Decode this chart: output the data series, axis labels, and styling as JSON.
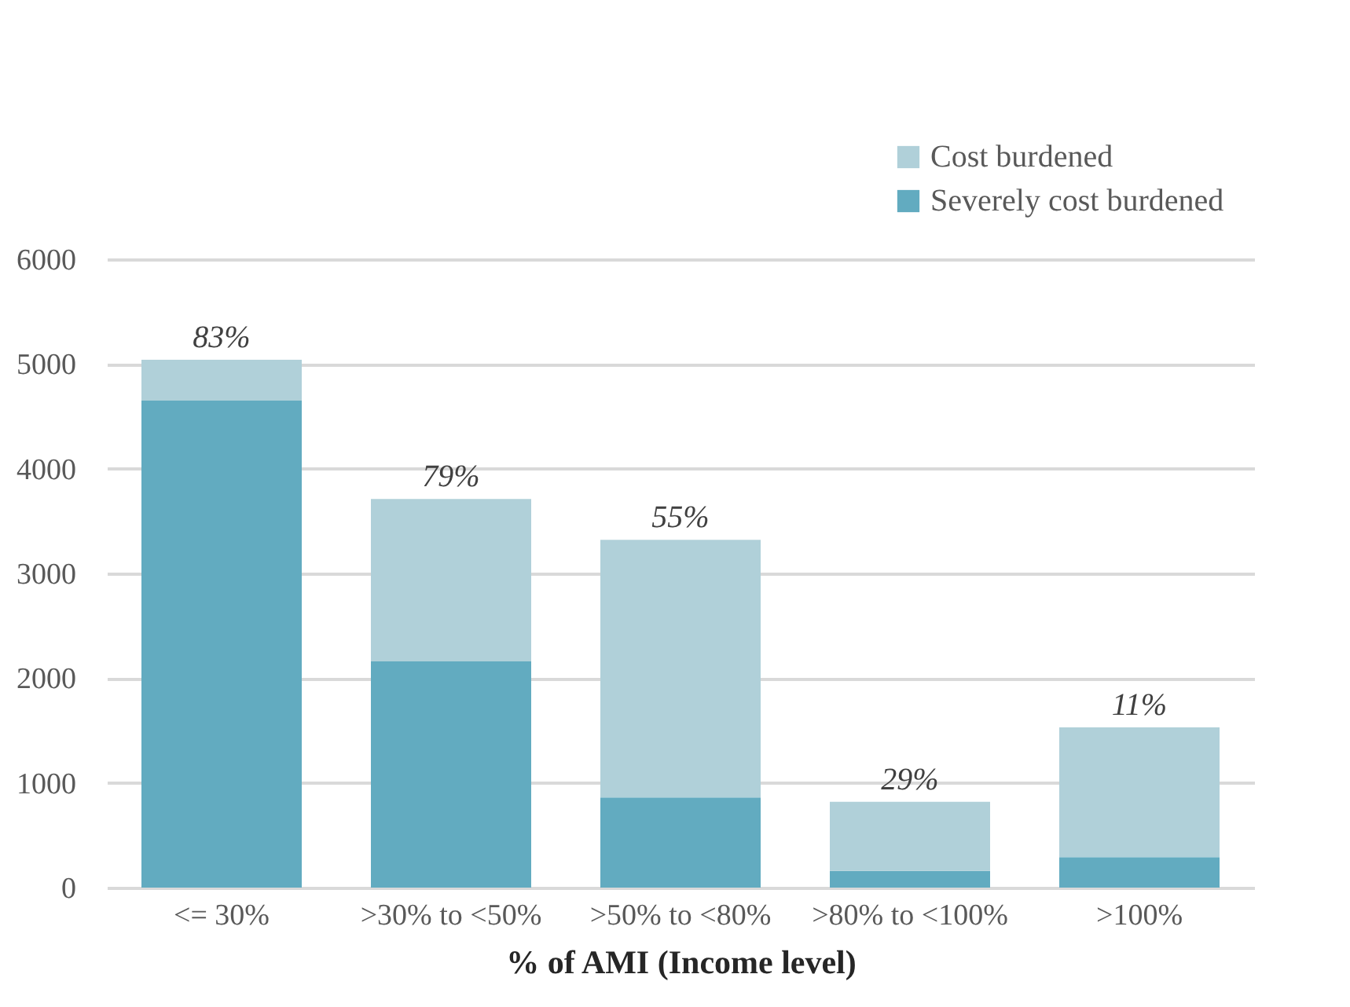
{
  "chart_data": {
    "type": "bar",
    "stacked": true,
    "categories": [
      "<= 30%",
      ">30% to <50%",
      ">50% to <80%",
      ">80% to <100%",
      ">100%"
    ],
    "series": [
      {
        "name": "Severely cost burdened",
        "color": "#62abc0",
        "values": [
          4650,
          2160,
          860,
          160,
          290
        ]
      },
      {
        "name": "Cost burdened",
        "color": "#b0d0d9",
        "values": [
          390,
          1550,
          2460,
          660,
          1240
        ]
      }
    ],
    "xlabel": "% of AMI (Income level)",
    "ylim": [
      0,
      6000
    ],
    "yticks": [
      0,
      1000,
      2000,
      3000,
      4000,
      5000,
      6000
    ],
    "grid": "y",
    "legend": "top right",
    "annotations": [
      {
        "text": "83%",
        "x": "<= 30%",
        "y": 5040
      },
      {
        "text": "79%",
        "x": ">30% to <50%",
        "y": 3710
      },
      {
        "text": "55%",
        "x": ">50% to <80%",
        "y": 3320
      },
      {
        "text": "29%",
        "x": ">80% to <100%",
        "y": 820
      },
      {
        "text": "11%",
        "x": ">100%",
        "y": 1530
      }
    ]
  }
}
